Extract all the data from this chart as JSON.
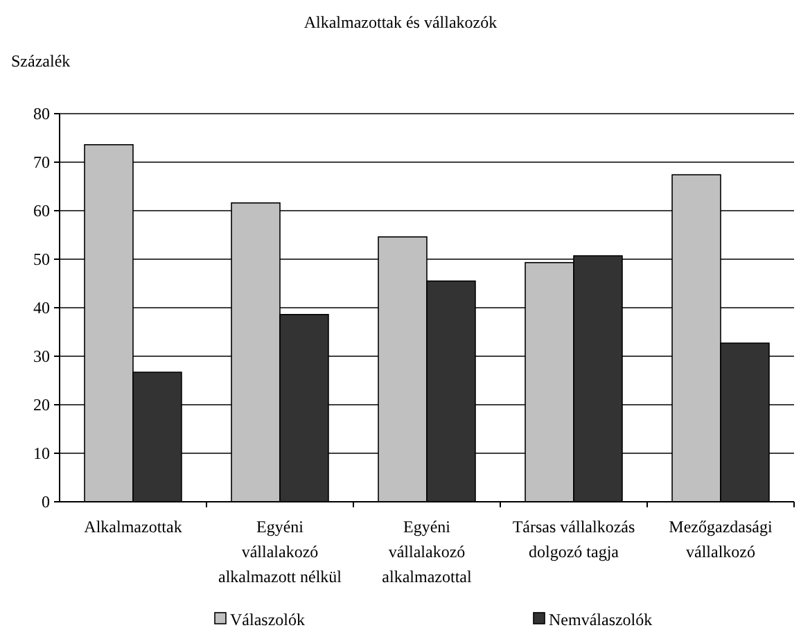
{
  "chart_data": {
    "type": "bar",
    "title": "Alkalmazottak és  vállakozók",
    "ylabel": "Százalék",
    "categories": [
      "Alkalmazottak",
      "Egyéni\nvállalakozó\nalkalmazott nélkül",
      "Egyéni\nvállalakozó\nalkalmazottal",
      "Társas vállalkozás\ndolgozó tagja",
      "Mezőgazdasági\nvállalkozó"
    ],
    "series": [
      {
        "name": "Válaszolók",
        "color": "#c0c0c0",
        "values": [
          73.6,
          61.6,
          54.6,
          49.3,
          67.4
        ]
      },
      {
        "name": "Nemválaszolók",
        "color": "#333333",
        "values": [
          26.7,
          38.6,
          45.5,
          50.7,
          32.7
        ]
      }
    ],
    "ylim": [
      0,
      80
    ],
    "yticks": [
      0,
      10,
      20,
      30,
      40,
      50,
      60,
      70,
      80
    ],
    "grid": "y",
    "legend": "bottom"
  }
}
